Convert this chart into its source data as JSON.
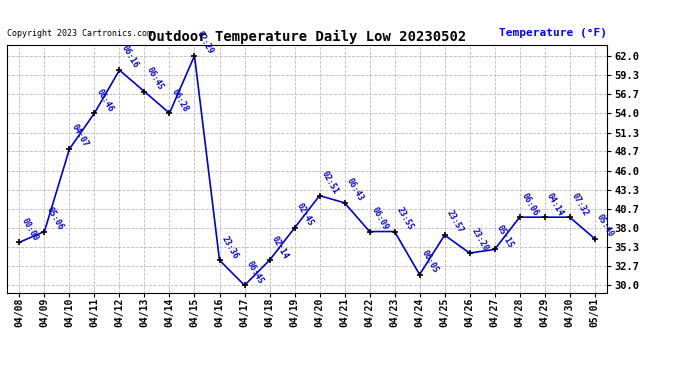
{
  "title": "Outdoor Temperature Daily Low 20230502",
  "ylabel": "Temperature (°F)",
  "background_color": "#ffffff",
  "line_color": "#0000cc",
  "grid_color": "#bbbbbb",
  "copyright_text": "Copyright 2023 Cartronics.com",
  "ylabel_color": "#0000ff",
  "title_color": "#000000",
  "yticks": [
    30.0,
    32.7,
    35.3,
    38.0,
    40.7,
    43.3,
    46.0,
    48.7,
    51.3,
    54.0,
    56.7,
    59.3,
    62.0
  ],
  "ylim": [
    29.0,
    63.5
  ],
  "dates": [
    "04/08",
    "04/09",
    "04/10",
    "04/11",
    "04/12",
    "04/13",
    "04/14",
    "04/15",
    "04/16",
    "04/17",
    "04/18",
    "04/19",
    "04/20",
    "04/21",
    "04/22",
    "04/23",
    "04/24",
    "04/25",
    "04/26",
    "04/27",
    "04/28",
    "04/29",
    "04/30",
    "05/01"
  ],
  "values": [
    36.0,
    37.5,
    49.0,
    54.0,
    60.0,
    57.0,
    54.0,
    62.0,
    33.5,
    30.0,
    33.5,
    38.0,
    42.5,
    41.5,
    37.5,
    37.5,
    31.5,
    37.0,
    34.5,
    35.0,
    39.5,
    39.5,
    39.5,
    36.5
  ],
  "time_labels": [
    "00:00",
    "05:06",
    "04:07",
    "06:46",
    "06:16",
    "06:45",
    "06:28",
    "02:29",
    "23:36",
    "06:45",
    "02:14",
    "02:45",
    "02:51",
    "06:43",
    "06:09",
    "23:55",
    "06:05",
    "23:57",
    "23:20",
    "05:15",
    "06:06",
    "04:14",
    "07:32",
    "05:40"
  ],
  "marker_color": "#000000",
  "line_width": 1.2,
  "figsize": [
    6.9,
    3.75
  ],
  "dpi": 100
}
